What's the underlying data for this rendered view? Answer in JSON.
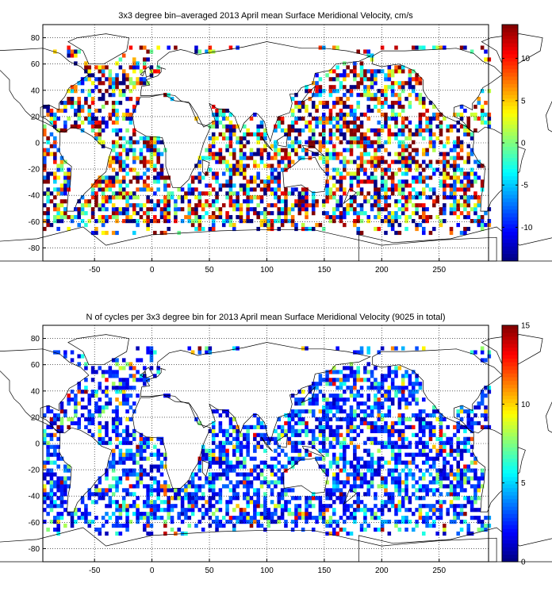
{
  "chart_data": [
    {
      "type": "heatmap",
      "title": "3x3 degree bin–averaged 2013 April mean Surface Meridional Velocity, cm/s",
      "xlim": [
        -95,
        293
      ],
      "ylim": [
        -90,
        90
      ],
      "xticks": [
        -50,
        0,
        50,
        100,
        150,
        200,
        250
      ],
      "yticks": [
        80,
        60,
        40,
        20,
        0,
        -20,
        -40,
        -60,
        -80
      ],
      "grid": true,
      "bin_size_deg": 3,
      "colorbar": {
        "min": -14,
        "max": 14,
        "ticks": [
          10,
          5,
          0,
          -5,
          -10
        ],
        "colormap": "jet"
      },
      "background_map": "world coastlines"
    },
    {
      "type": "heatmap",
      "title": "N of cycles per 3x3 degree bin for 2013 April mean Surface Meridional Velocity (9025 in total)",
      "xlim": [
        -95,
        293
      ],
      "ylim": [
        -90,
        90
      ],
      "xticks": [
        -50,
        0,
        50,
        100,
        150,
        200,
        250
      ],
      "yticks": [
        80,
        60,
        40,
        20,
        0,
        -20,
        -40,
        -60,
        -80
      ],
      "grid": true,
      "bin_size_deg": 3,
      "total_cycles": 9025,
      "colorbar": {
        "min": 0,
        "max": 15,
        "ticks": [
          15,
          10,
          5,
          0
        ],
        "colormap": "jet"
      },
      "background_map": "world coastlines"
    }
  ]
}
